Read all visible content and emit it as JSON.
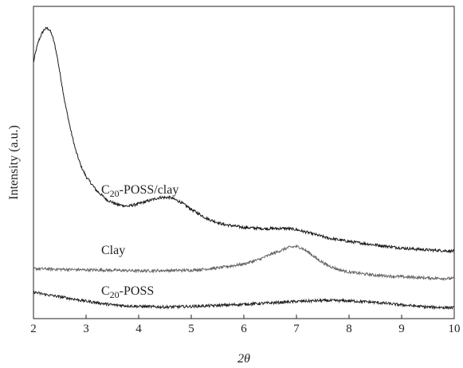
{
  "chart_data": {
    "type": "line",
    "title": "",
    "xlabel": "2θ",
    "ylabel": "Intensity (a.u.)",
    "xlim": [
      2,
      10
    ],
    "ylim": [
      0,
      100
    ],
    "xticks": [
      "2",
      "3",
      "4",
      "5",
      "6",
      "7",
      "8",
      "9",
      "10"
    ],
    "yticks_shown": false,
    "grid": false,
    "legend": "none",
    "series": [
      {
        "label_base": "C",
        "label_sub": "20",
        "label_rest": "-POSS/clay",
        "color": "#1a1a1a",
        "points": [
          [
            2.0,
            82
          ],
          [
            2.05,
            86
          ],
          [
            2.1,
            89
          ],
          [
            2.15,
            91
          ],
          [
            2.2,
            92.5
          ],
          [
            2.25,
            93
          ],
          [
            2.3,
            92.6
          ],
          [
            2.35,
            91
          ],
          [
            2.4,
            88
          ],
          [
            2.45,
            84
          ],
          [
            2.5,
            79
          ],
          [
            2.55,
            74
          ],
          [
            2.6,
            69
          ],
          [
            2.7,
            61
          ],
          [
            2.8,
            54
          ],
          [
            2.9,
            49
          ],
          [
            3.0,
            45.5
          ],
          [
            3.2,
            41
          ],
          [
            3.4,
            38
          ],
          [
            3.6,
            36.5
          ],
          [
            3.8,
            36
          ],
          [
            4.0,
            36.8
          ],
          [
            4.2,
            37.8
          ],
          [
            4.4,
            38.8
          ],
          [
            4.6,
            38.8
          ],
          [
            4.8,
            37.3
          ],
          [
            5.0,
            35
          ],
          [
            5.3,
            32
          ],
          [
            5.6,
            30.2
          ],
          [
            6.0,
            29.2
          ],
          [
            6.4,
            28.8
          ],
          [
            6.8,
            28.9
          ],
          [
            7.0,
            28.5
          ],
          [
            7.3,
            27.2
          ],
          [
            7.6,
            25.8
          ],
          [
            8.0,
            24.7
          ],
          [
            8.5,
            23.6
          ],
          [
            9.0,
            22.6
          ],
          [
            9.5,
            22
          ],
          [
            10.0,
            21.6
          ]
        ]
      },
      {
        "label": "Clay",
        "color": "#666666",
        "points": [
          [
            2.0,
            16
          ],
          [
            2.5,
            15.8
          ],
          [
            3.0,
            15.6
          ],
          [
            3.5,
            15.5
          ],
          [
            4.0,
            15.3
          ],
          [
            4.5,
            15.4
          ],
          [
            5.0,
            15.5
          ],
          [
            5.5,
            16.2
          ],
          [
            6.0,
            17.5
          ],
          [
            6.3,
            19
          ],
          [
            6.5,
            20.5
          ],
          [
            6.7,
            21.8
          ],
          [
            6.85,
            22.8
          ],
          [
            7.0,
            23.1
          ],
          [
            7.1,
            22.6
          ],
          [
            7.25,
            21
          ],
          [
            7.4,
            19
          ],
          [
            7.6,
            17
          ],
          [
            7.8,
            15.7
          ],
          [
            8.0,
            14.9
          ],
          [
            8.5,
            13.9
          ],
          [
            9.0,
            13.4
          ],
          [
            9.5,
            13
          ],
          [
            10.0,
            12.8
          ]
        ]
      },
      {
        "label_base": "C",
        "label_sub": "20",
        "label_rest": "-POSS",
        "color": "#222222",
        "points": [
          [
            2.0,
            8.5
          ],
          [
            2.2,
            7.8
          ],
          [
            2.5,
            7
          ],
          [
            3.0,
            5.6
          ],
          [
            3.5,
            4.4
          ],
          [
            4.0,
            3.9
          ],
          [
            4.5,
            3.7
          ],
          [
            5.0,
            3.9
          ],
          [
            5.5,
            4.2
          ],
          [
            6.0,
            4.6
          ],
          [
            6.5,
            5
          ],
          [
            7.0,
            5.5
          ],
          [
            7.5,
            5.8
          ],
          [
            8.0,
            5.7
          ],
          [
            8.5,
            5.2
          ],
          [
            9.0,
            4.4
          ],
          [
            9.5,
            3.7
          ],
          [
            10.0,
            3.5
          ]
        ]
      }
    ]
  }
}
